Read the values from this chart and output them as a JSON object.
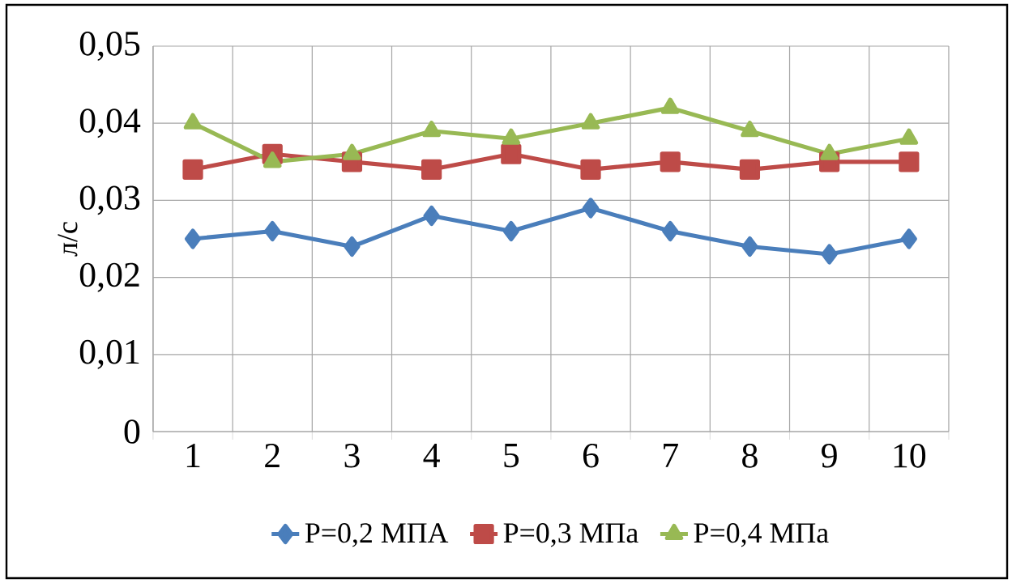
{
  "chart_data": {
    "type": "line",
    "ylabel": "л/с",
    "categories": [
      "1",
      "2",
      "3",
      "4",
      "5",
      "6",
      "7",
      "8",
      "9",
      "10"
    ],
    "ylim": [
      0,
      0.05
    ],
    "yticks": [
      {
        "value": 0,
        "label": "0"
      },
      {
        "value": 0.01,
        "label": "0,01"
      },
      {
        "value": 0.02,
        "label": "0,02"
      },
      {
        "value": 0.03,
        "label": "0,03"
      },
      {
        "value": 0.04,
        "label": "0,04"
      },
      {
        "value": 0.05,
        "label": "0,05"
      }
    ],
    "grid": true,
    "legend": "bottom",
    "line_style": "solid",
    "series": [
      {
        "name": "Р=0,2 МПА",
        "color": "#4a7ebb",
        "marker": "diamond",
        "values": [
          0.025,
          0.026,
          0.024,
          0.028,
          0.026,
          0.029,
          0.026,
          0.024,
          0.023,
          0.025
        ]
      },
      {
        "name": "Р=0,3 МПа",
        "color": "#be4b48",
        "marker": "square",
        "values": [
          0.034,
          0.036,
          0.035,
          0.034,
          0.036,
          0.034,
          0.035,
          0.034,
          0.035,
          0.035
        ]
      },
      {
        "name": "Р=0,4 МПа",
        "color": "#98b954",
        "marker": "triangle",
        "values": [
          0.04,
          0.035,
          0.036,
          0.039,
          0.038,
          0.04,
          0.042,
          0.039,
          0.036,
          0.038
        ]
      }
    ]
  }
}
